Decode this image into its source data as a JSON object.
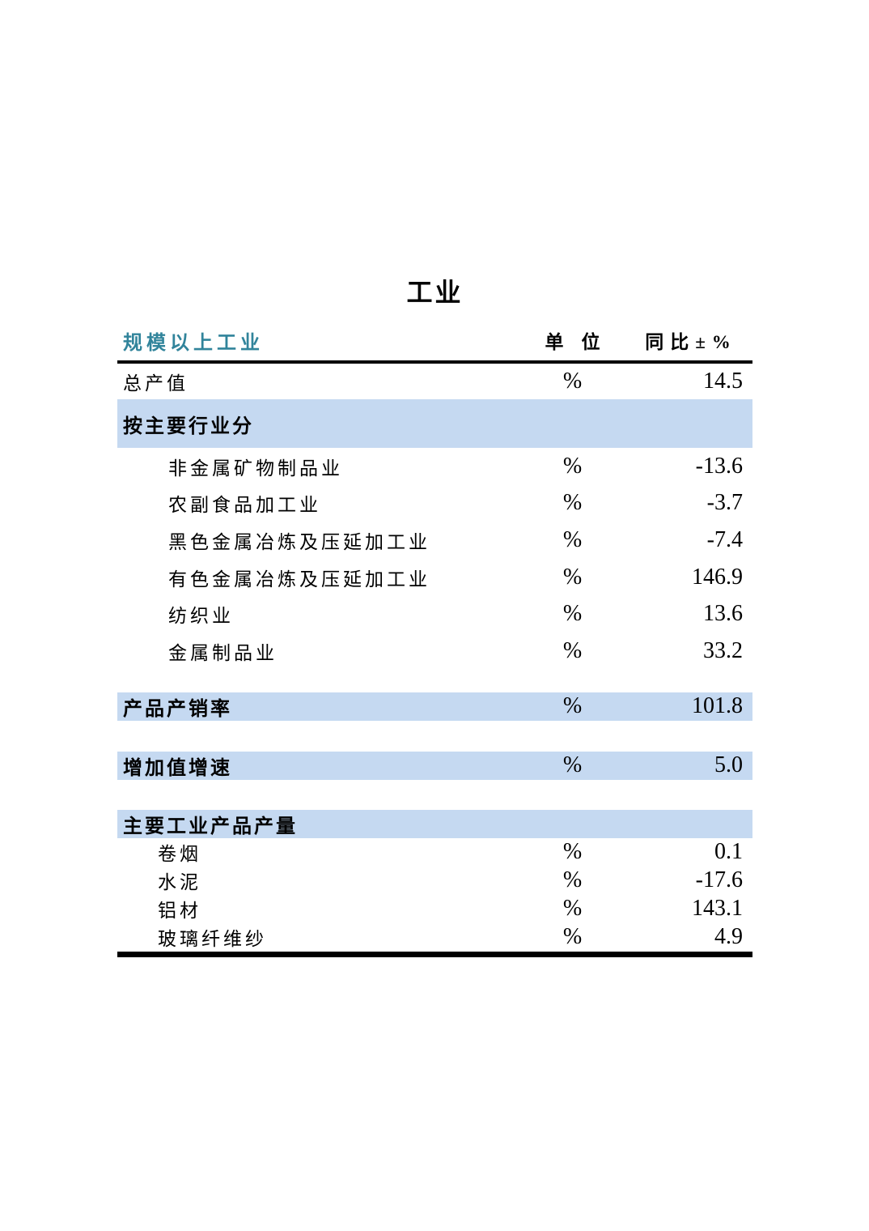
{
  "page": {
    "title": "工业"
  },
  "colors": {
    "section_header_teal": "#31849b",
    "band_blue": "#c5d9f1",
    "text": "#000000"
  },
  "table": {
    "header": {
      "group": "规模以上工业",
      "unit": "单位",
      "yoy": "同比±%"
    },
    "rows": [
      {
        "kind": "data",
        "section": "overall",
        "label": "总产值",
        "unit": "%",
        "value": "14.5"
      },
      {
        "kind": "section",
        "section": "by-industry",
        "label": "按主要行业分",
        "unit": "",
        "value": ""
      },
      {
        "kind": "data",
        "section": "by-industry",
        "label": "非金属矿物制品业",
        "unit": "%",
        "value": "-13.6"
      },
      {
        "kind": "data",
        "section": "by-industry",
        "label": "农副食品加工业",
        "unit": "%",
        "value": "-3.7"
      },
      {
        "kind": "data",
        "section": "by-industry",
        "label": "黑色金属冶炼及压延加工业",
        "unit": "%",
        "value": "-7.4"
      },
      {
        "kind": "data",
        "section": "by-industry",
        "label": "有色金属冶炼及压延加工业",
        "unit": "%",
        "value": "146.9"
      },
      {
        "kind": "data",
        "section": "by-industry",
        "label": "纺织业",
        "unit": "%",
        "value": "13.6"
      },
      {
        "kind": "data",
        "section": "by-industry",
        "label": "金属制品业",
        "unit": "%",
        "value": "33.2"
      },
      {
        "kind": "spacer",
        "section": "gap1",
        "label": "",
        "unit": "",
        "value": ""
      },
      {
        "kind": "section",
        "section": "sales-ratio",
        "label": "产品产销率",
        "unit": "%",
        "value": "101.8"
      },
      {
        "kind": "spacer",
        "section": "gap2",
        "label": "",
        "unit": "",
        "value": ""
      },
      {
        "kind": "section",
        "section": "value-added",
        "label": "增加值增速",
        "unit": "%",
        "value": "5.0"
      },
      {
        "kind": "spacer",
        "section": "gap3",
        "label": "",
        "unit": "",
        "value": ""
      },
      {
        "kind": "section",
        "section": "products",
        "label": "主要工业产品产量",
        "unit": "",
        "value": ""
      },
      {
        "kind": "data",
        "section": "products",
        "label": "卷烟",
        "unit": "%",
        "value": "0.1"
      },
      {
        "kind": "data",
        "section": "products",
        "label": "水泥",
        "unit": "%",
        "value": "-17.6"
      },
      {
        "kind": "data",
        "section": "products",
        "label": "铝材",
        "unit": "%",
        "value": "143.1"
      },
      {
        "kind": "data",
        "section": "products",
        "label": "玻璃纤维纱",
        "unit": "%",
        "value": "4.9"
      }
    ]
  }
}
